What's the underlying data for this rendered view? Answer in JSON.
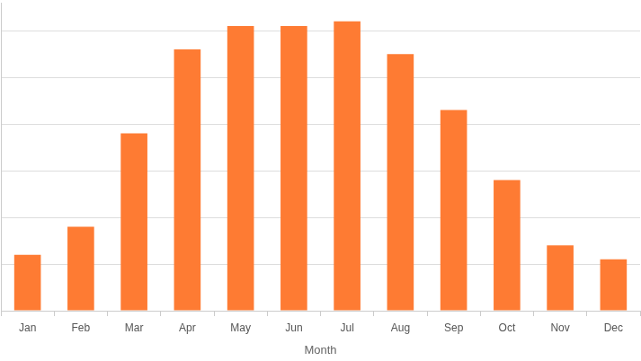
{
  "chart_data": {
    "type": "bar",
    "x_label": "Month",
    "categories": [
      "Jan",
      "Feb",
      "Mar",
      "Apr",
      "May",
      "Jun",
      "Jul",
      "Aug",
      "Sep",
      "Oct",
      "Nov",
      "Dec"
    ],
    "values": [
      1.2,
      1.8,
      3.8,
      5.6,
      6.1,
      6.1,
      6.2,
      5.5,
      4.3,
      2.8,
      1.4,
      1.1
    ],
    "color": "#fe7b33",
    "ylim": [
      0,
      6.6
    ],
    "yticks": [
      0,
      1,
      2,
      3,
      4,
      5,
      6
    ],
    "grid": true,
    "tick_labels": "x"
  }
}
